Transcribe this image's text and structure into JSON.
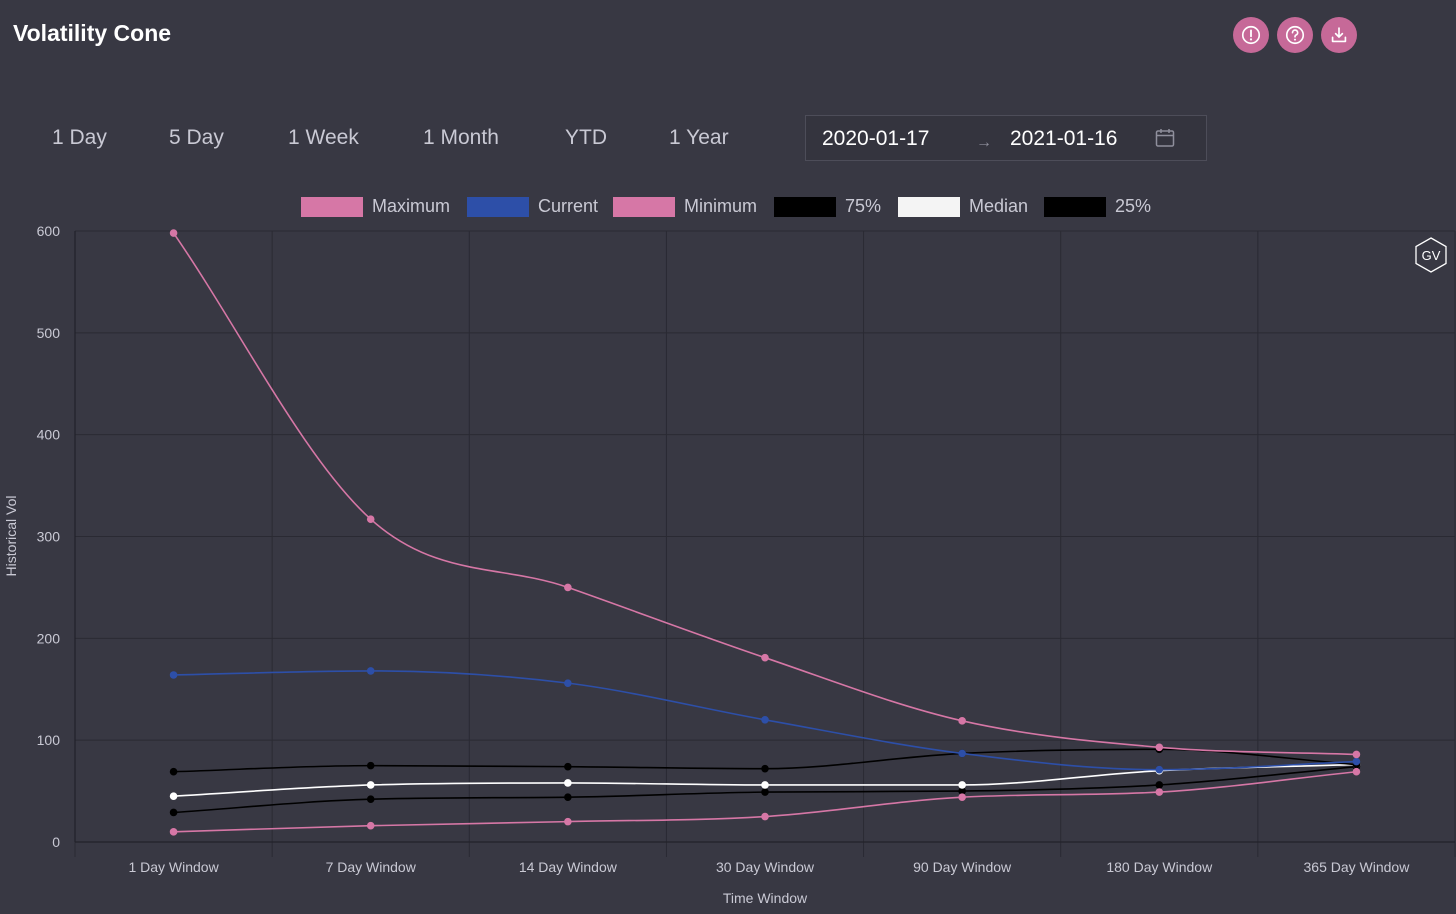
{
  "header": {
    "title": "Volatility Cone",
    "icons": [
      "alert-icon",
      "help-icon",
      "download-icon"
    ]
  },
  "ranges": [
    "1 Day",
    "5 Day",
    "1 Week",
    "1 Month",
    "YTD",
    "1 Year"
  ],
  "date_range": {
    "start": "2020-01-17",
    "end": "2021-01-16",
    "separator": "→"
  },
  "watermark": "GV",
  "chart_data": {
    "type": "line",
    "categories": [
      "1 Day Window",
      "7 Day Window",
      "14 Day Window",
      "30 Day Window",
      "90 Day Window",
      "180 Day Window",
      "365 Day Window"
    ],
    "xlabel": "Time Window",
    "ylabel": "Historical Vol",
    "ylim": [
      0,
      600
    ],
    "yticks": [
      0,
      100,
      200,
      300,
      400,
      500,
      600
    ],
    "grid": true,
    "legend_position": "top-center",
    "series": [
      {
        "name": "Maximum",
        "color": "#d677a6",
        "values": [
          598,
          317,
          250,
          181,
          119,
          93,
          86
        ]
      },
      {
        "name": "Current",
        "color": "#2d4fa8",
        "values": [
          164,
          168,
          156,
          120,
          87,
          71,
          79
        ]
      },
      {
        "name": "Minimum",
        "color": "#d677a6",
        "values": [
          10,
          16,
          20,
          25,
          44,
          49,
          69
        ]
      },
      {
        "name": "75%",
        "color": "#000000",
        "values": [
          69,
          75,
          74,
          72,
          87,
          91,
          76
        ]
      },
      {
        "name": "Median",
        "color": "#ffffff",
        "values": [
          45,
          56,
          58,
          56,
          56,
          70,
          76
        ]
      },
      {
        "name": "25%",
        "color": "#000000",
        "values": [
          29,
          42,
          44,
          49,
          50,
          56,
          74
        ]
      }
    ]
  }
}
